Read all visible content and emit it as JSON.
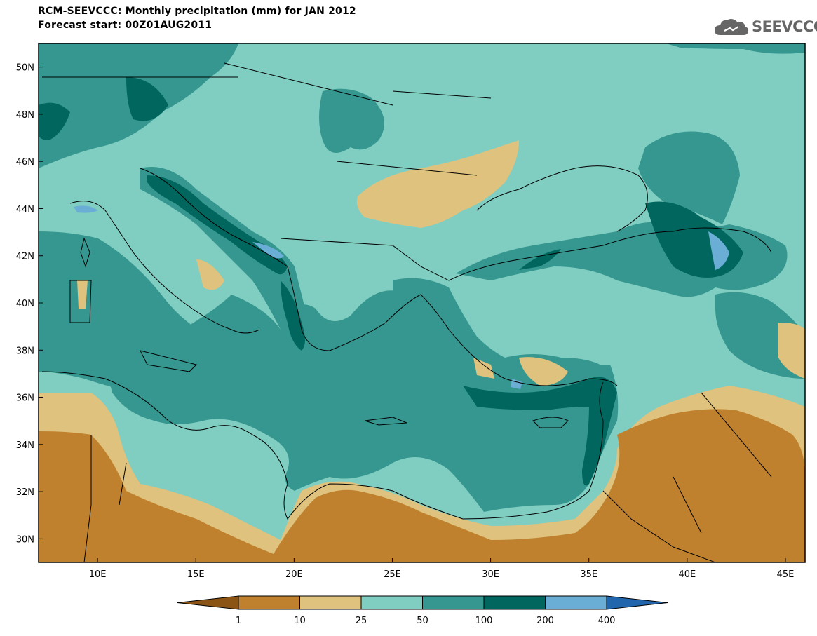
{
  "header": {
    "title_line1": "RCM-SEEVCCC: Monthly precipitation (mm) for JAN 2012",
    "title_line2": "Forecast start: 00Z01AUG2011"
  },
  "logo": {
    "text": "SEEVCCC",
    "icon": "cloud-logo-icon"
  },
  "map": {
    "lon_range": [
      7,
      46
    ],
    "lat_range": [
      29,
      51
    ],
    "lat_ticks": [
      {
        "value": 50,
        "label": "50N"
      },
      {
        "value": 48,
        "label": "48N"
      },
      {
        "value": 46,
        "label": "46N"
      },
      {
        "value": 44,
        "label": "44N"
      },
      {
        "value": 42,
        "label": "42N"
      },
      {
        "value": 40,
        "label": "40N"
      },
      {
        "value": 38,
        "label": "38N"
      },
      {
        "value": 36,
        "label": "36N"
      },
      {
        "value": 34,
        "label": "34N"
      },
      {
        "value": 32,
        "label": "32N"
      },
      {
        "value": 30,
        "label": "30N"
      }
    ],
    "lon_ticks": [
      {
        "value": 10,
        "label": "10E"
      },
      {
        "value": 15,
        "label": "15E"
      },
      {
        "value": 20,
        "label": "20E"
      },
      {
        "value": 25,
        "label": "25E"
      },
      {
        "value": 30,
        "label": "30E"
      },
      {
        "value": 35,
        "label": "35E"
      },
      {
        "value": 40,
        "label": "40E"
      },
      {
        "value": 45,
        "label": "45E"
      }
    ]
  },
  "colorbar": {
    "colors": [
      "#8c5414",
      "#bf812d",
      "#dfc27d",
      "#80cdc1",
      "#35978f",
      "#01665e",
      "#6aaed6",
      "#2166ac"
    ],
    "labels": [
      "1",
      "10",
      "25",
      "50",
      "100",
      "200",
      "400"
    ]
  }
}
